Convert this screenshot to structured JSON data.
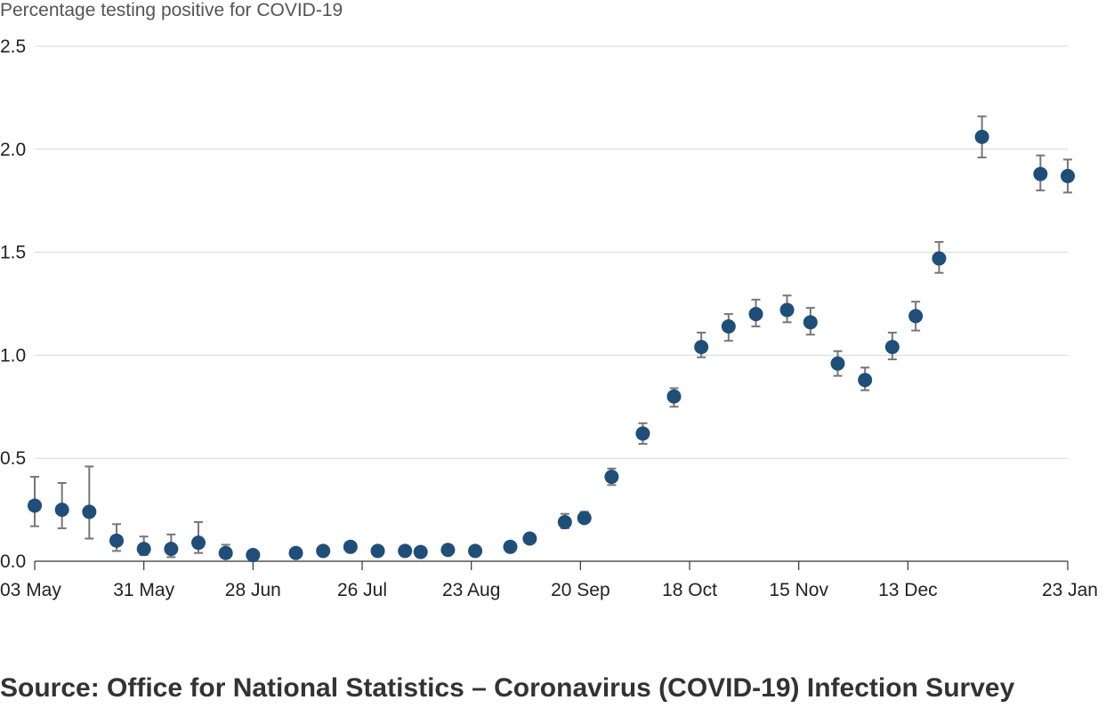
{
  "chart_data": {
    "type": "scatter",
    "ylabel": "Percentage testing positive for COVID-19",
    "xlabel": "",
    "source": "Source: Office for National Statistics – Coronavirus (COVID-19) Infection Survey",
    "ylim": [
      0,
      2.5
    ],
    "xlim": [
      "2020-05-03",
      "2021-01-23"
    ],
    "y_ticks": [
      "0.0",
      "0.5",
      "1.0",
      "1.5",
      "2.0",
      "2.5"
    ],
    "x_ticks": [
      {
        "date": "2020-05-03",
        "label": "03 May"
      },
      {
        "date": "2020-05-31",
        "label": "31 May"
      },
      {
        "date": "2020-06-28",
        "label": "28 Jun"
      },
      {
        "date": "2020-07-26",
        "label": "26 Jul"
      },
      {
        "date": "2020-08-23",
        "label": "23 Aug"
      },
      {
        "date": "2020-09-20",
        "label": "20 Sep"
      },
      {
        "date": "2020-10-18",
        "label": "18 Oct"
      },
      {
        "date": "2020-11-15",
        "label": "15 Nov"
      },
      {
        "date": "2020-12-13",
        "label": "13 Dec"
      },
      {
        "date": "2021-01-23",
        "label": "23 Jan"
      }
    ],
    "grid": true,
    "marker_color": "#1f4e79",
    "errorbar_color": "#777777",
    "points": [
      {
        "x": "2020-05-03",
        "y": 0.27,
        "lo": 0.17,
        "hi": 0.41
      },
      {
        "x": "2020-05-10",
        "y": 0.25,
        "lo": 0.16,
        "hi": 0.38
      },
      {
        "x": "2020-05-17",
        "y": 0.24,
        "lo": 0.11,
        "hi": 0.46
      },
      {
        "x": "2020-05-24",
        "y": 0.1,
        "lo": 0.05,
        "hi": 0.18
      },
      {
        "x": "2020-05-31",
        "y": 0.06,
        "lo": 0.03,
        "hi": 0.12
      },
      {
        "x": "2020-06-07",
        "y": 0.06,
        "lo": 0.02,
        "hi": 0.13
      },
      {
        "x": "2020-06-14",
        "y": 0.09,
        "lo": 0.04,
        "hi": 0.19
      },
      {
        "x": "2020-06-21",
        "y": 0.04,
        "lo": 0.02,
        "hi": 0.08
      },
      {
        "x": "2020-06-28",
        "y": 0.03,
        "lo": 0.02,
        "hi": 0.05
      },
      {
        "x": "2020-07-09",
        "y": 0.04,
        "lo": 0.03,
        "hi": 0.06
      },
      {
        "x": "2020-07-16",
        "y": 0.05,
        "lo": 0.04,
        "hi": 0.07
      },
      {
        "x": "2020-07-23",
        "y": 0.07,
        "lo": 0.05,
        "hi": 0.09
      },
      {
        "x": "2020-07-30",
        "y": 0.05,
        "lo": 0.04,
        "hi": 0.07
      },
      {
        "x": "2020-08-06",
        "y": 0.05,
        "lo": 0.04,
        "hi": 0.07
      },
      {
        "x": "2020-08-10",
        "y": 0.045,
        "lo": 0.035,
        "hi": 0.065
      },
      {
        "x": "2020-08-17",
        "y": 0.055,
        "lo": 0.04,
        "hi": 0.07
      },
      {
        "x": "2020-08-24",
        "y": 0.05,
        "lo": 0.04,
        "hi": 0.07
      },
      {
        "x": "2020-09-02",
        "y": 0.07,
        "lo": 0.06,
        "hi": 0.09
      },
      {
        "x": "2020-09-07",
        "y": 0.11,
        "lo": 0.09,
        "hi": 0.13
      },
      {
        "x": "2020-09-16",
        "y": 0.19,
        "lo": 0.16,
        "hi": 0.23
      },
      {
        "x": "2020-09-21",
        "y": 0.21,
        "lo": 0.19,
        "hi": 0.24
      },
      {
        "x": "2020-09-28",
        "y": 0.41,
        "lo": 0.37,
        "hi": 0.45
      },
      {
        "x": "2020-10-06",
        "y": 0.62,
        "lo": 0.57,
        "hi": 0.67
      },
      {
        "x": "2020-10-14",
        "y": 0.8,
        "lo": 0.75,
        "hi": 0.84
      },
      {
        "x": "2020-10-21",
        "y": 1.04,
        "lo": 0.99,
        "hi": 1.11
      },
      {
        "x": "2020-10-28",
        "y": 1.14,
        "lo": 1.07,
        "hi": 1.2
      },
      {
        "x": "2020-11-04",
        "y": 1.2,
        "lo": 1.14,
        "hi": 1.27
      },
      {
        "x": "2020-11-12",
        "y": 1.22,
        "lo": 1.16,
        "hi": 1.29
      },
      {
        "x": "2020-11-18",
        "y": 1.16,
        "lo": 1.1,
        "hi": 1.23
      },
      {
        "x": "2020-11-25",
        "y": 0.96,
        "lo": 0.9,
        "hi": 1.02
      },
      {
        "x": "2020-12-02",
        "y": 0.88,
        "lo": 0.83,
        "hi": 0.94
      },
      {
        "x": "2020-12-09",
        "y": 1.04,
        "lo": 0.98,
        "hi": 1.11
      },
      {
        "x": "2020-12-15",
        "y": 1.19,
        "lo": 1.12,
        "hi": 1.26
      },
      {
        "x": "2020-12-21",
        "y": 1.47,
        "lo": 1.4,
        "hi": 1.55
      },
      {
        "x": "2021-01-01",
        "y": 2.06,
        "lo": 1.96,
        "hi": 2.16
      },
      {
        "x": "2021-01-16",
        "y": 1.88,
        "lo": 1.8,
        "hi": 1.97
      },
      {
        "x": "2021-01-23",
        "y": 1.87,
        "lo": 1.79,
        "hi": 1.95
      }
    ]
  }
}
